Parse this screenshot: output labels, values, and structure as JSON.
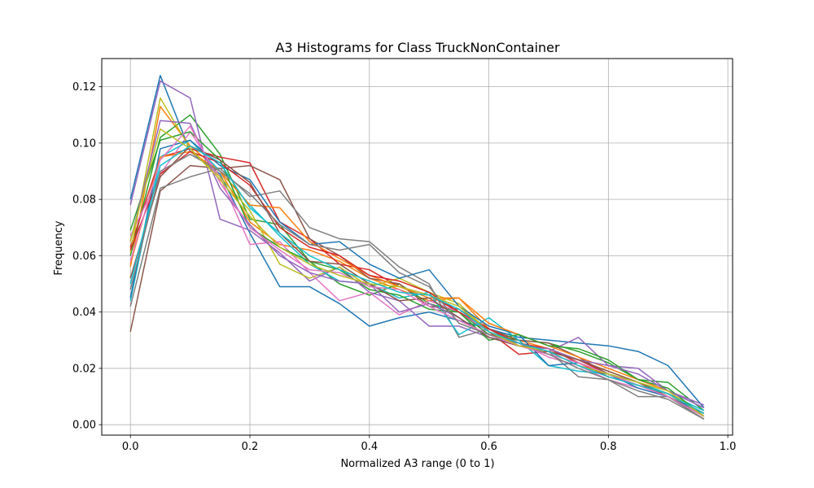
{
  "chart_data": {
    "type": "line",
    "title": "A3 Histograms for Class TruckNonContainer",
    "xlabel": "Normalized A3 range (0 to 1)",
    "ylabel": "Frequency",
    "xlim": [
      -0.048,
      1.008
    ],
    "ylim": [
      -0.0037,
      0.13
    ],
    "xticks": [
      0.0,
      0.2,
      0.4,
      0.6,
      0.8,
      1.0
    ],
    "xtick_labels": [
      "0.0",
      "0.2",
      "0.4",
      "0.6",
      "0.8",
      "1.0"
    ],
    "yticks": [
      0.0,
      0.02,
      0.04,
      0.06,
      0.08,
      0.1,
      0.12
    ],
    "ytick_labels": [
      "0.00",
      "0.02",
      "0.04",
      "0.06",
      "0.08",
      "0.10",
      "0.12"
    ],
    "grid": true,
    "legend": "none",
    "x": [
      0.0,
      0.05,
      0.1,
      0.15,
      0.2,
      0.25,
      0.3,
      0.35,
      0.4,
      0.45,
      0.5,
      0.55,
      0.6,
      0.65,
      0.7,
      0.75,
      0.8,
      0.85,
      0.9,
      0.96
    ],
    "series": [
      {
        "color": "#1f77b4",
        "values": [
          0.08,
          0.124,
          0.097,
          0.089,
          0.068,
          0.049,
          0.049,
          0.043,
          0.035,
          0.038,
          0.04,
          0.037,
          0.034,
          0.031,
          0.03,
          0.029,
          0.028,
          0.026,
          0.021,
          0.006
        ]
      },
      {
        "color": "#ff7f0e",
        "values": [
          0.056,
          0.113,
          0.099,
          0.09,
          0.072,
          0.064,
          0.062,
          0.058,
          0.052,
          0.048,
          0.044,
          0.045,
          0.034,
          0.03,
          0.027,
          0.023,
          0.019,
          0.015,
          0.011,
          0.004
        ]
      },
      {
        "color": "#2ca02c",
        "values": [
          0.06,
          0.102,
          0.11,
          0.096,
          0.073,
          0.071,
          0.058,
          0.05,
          0.046,
          0.05,
          0.043,
          0.04,
          0.032,
          0.03,
          0.029,
          0.026,
          0.022,
          0.016,
          0.015,
          0.005
        ]
      },
      {
        "color": "#d62728",
        "values": [
          0.063,
          0.095,
          0.098,
          0.095,
          0.093,
          0.072,
          0.066,
          0.057,
          0.055,
          0.049,
          0.046,
          0.04,
          0.033,
          0.025,
          0.026,
          0.023,
          0.018,
          0.014,
          0.01,
          0.003
        ]
      },
      {
        "color": "#9467bd",
        "values": [
          0.078,
          0.122,
          0.116,
          0.073,
          0.069,
          0.061,
          0.051,
          0.056,
          0.047,
          0.044,
          0.035,
          0.035,
          0.031,
          0.029,
          0.026,
          0.031,
          0.021,
          0.02,
          0.012,
          0.007
        ]
      },
      {
        "color": "#8c564b",
        "values": [
          0.033,
          0.083,
          0.092,
          0.091,
          0.092,
          0.087,
          0.066,
          0.06,
          0.052,
          0.05,
          0.042,
          0.041,
          0.034,
          0.03,
          0.029,
          0.024,
          0.018,
          0.015,
          0.01,
          0.002
        ]
      },
      {
        "color": "#e377c2",
        "values": [
          0.067,
          0.089,
          0.104,
          0.088,
          0.064,
          0.065,
          0.054,
          0.044,
          0.047,
          0.039,
          0.044,
          0.04,
          0.033,
          0.029,
          0.024,
          0.021,
          0.016,
          0.013,
          0.01,
          0.003
        ]
      },
      {
        "color": "#7f7f7f",
        "values": [
          0.042,
          0.084,
          0.088,
          0.091,
          0.081,
          0.083,
          0.07,
          0.066,
          0.065,
          0.056,
          0.05,
          0.031,
          0.034,
          0.028,
          0.026,
          0.017,
          0.016,
          0.01,
          0.01,
          0.002
        ]
      },
      {
        "color": "#bcbd22",
        "values": [
          0.061,
          0.116,
          0.098,
          0.088,
          0.076,
          0.057,
          0.052,
          0.056,
          0.049,
          0.052,
          0.047,
          0.043,
          0.033,
          0.028,
          0.027,
          0.022,
          0.017,
          0.014,
          0.011,
          0.003
        ]
      },
      {
        "color": "#17becf",
        "values": [
          0.044,
          0.095,
          0.101,
          0.09,
          0.078,
          0.067,
          0.057,
          0.051,
          0.05,
          0.045,
          0.047,
          0.032,
          0.038,
          0.03,
          0.021,
          0.019,
          0.018,
          0.015,
          0.011,
          0.005
        ]
      },
      {
        "color": "#1f77b4",
        "values": [
          0.045,
          0.098,
          0.101,
          0.092,
          0.087,
          0.072,
          0.064,
          0.065,
          0.057,
          0.052,
          0.055,
          0.042,
          0.035,
          0.032,
          0.021,
          0.022,
          0.018,
          0.013,
          0.01,
          0.004
        ]
      },
      {
        "color": "#ff7f0e",
        "values": [
          0.057,
          0.095,
          0.097,
          0.09,
          0.078,
          0.077,
          0.065,
          0.059,
          0.053,
          0.049,
          0.045,
          0.045,
          0.036,
          0.032,
          0.028,
          0.024,
          0.02,
          0.016,
          0.012,
          0.003
        ]
      },
      {
        "color": "#2ca02c",
        "values": [
          0.069,
          0.101,
          0.104,
          0.094,
          0.07,
          0.063,
          0.058,
          0.055,
          0.048,
          0.046,
          0.041,
          0.04,
          0.03,
          0.032,
          0.028,
          0.027,
          0.023,
          0.016,
          0.013,
          0.003
        ]
      },
      {
        "color": "#d62728",
        "values": [
          0.062,
          0.089,
          0.097,
          0.093,
          0.085,
          0.07,
          0.063,
          0.06,
          0.053,
          0.051,
          0.047,
          0.04,
          0.034,
          0.029,
          0.027,
          0.022,
          0.017,
          0.014,
          0.011,
          0.004
        ]
      },
      {
        "color": "#9467bd",
        "values": [
          0.065,
          0.108,
          0.107,
          0.084,
          0.071,
          0.06,
          0.054,
          0.051,
          0.05,
          0.04,
          0.043,
          0.038,
          0.031,
          0.028,
          0.027,
          0.023,
          0.021,
          0.018,
          0.012,
          0.006
        ]
      },
      {
        "color": "#8c564b",
        "values": [
          0.052,
          0.088,
          0.099,
          0.094,
          0.086,
          0.068,
          0.058,
          0.057,
          0.05,
          0.044,
          0.045,
          0.038,
          0.031,
          0.028,
          0.026,
          0.023,
          0.019,
          0.015,
          0.01,
          0.003
        ]
      },
      {
        "color": "#e377c2",
        "values": [
          0.058,
          0.094,
          0.106,
          0.086,
          0.07,
          0.062,
          0.055,
          0.054,
          0.049,
          0.048,
          0.042,
          0.037,
          0.032,
          0.028,
          0.025,
          0.022,
          0.018,
          0.014,
          0.01,
          0.003
        ]
      },
      {
        "color": "#7f7f7f",
        "values": [
          0.048,
          0.09,
          0.096,
          0.09,
          0.082,
          0.071,
          0.064,
          0.062,
          0.064,
          0.054,
          0.049,
          0.036,
          0.032,
          0.029,
          0.025,
          0.02,
          0.016,
          0.012,
          0.009,
          0.002
        ]
      },
      {
        "color": "#bcbd22",
        "values": [
          0.065,
          0.105,
          0.098,
          0.087,
          0.074,
          0.063,
          0.057,
          0.053,
          0.05,
          0.049,
          0.046,
          0.042,
          0.033,
          0.028,
          0.026,
          0.021,
          0.018,
          0.015,
          0.012,
          0.003
        ]
      },
      {
        "color": "#17becf",
        "values": [
          0.05,
          0.092,
          0.099,
          0.093,
          0.077,
          0.068,
          0.06,
          0.055,
          0.051,
          0.047,
          0.046,
          0.041,
          0.033,
          0.029,
          0.026,
          0.021,
          0.017,
          0.014,
          0.011,
          0.004
        ]
      }
    ]
  }
}
